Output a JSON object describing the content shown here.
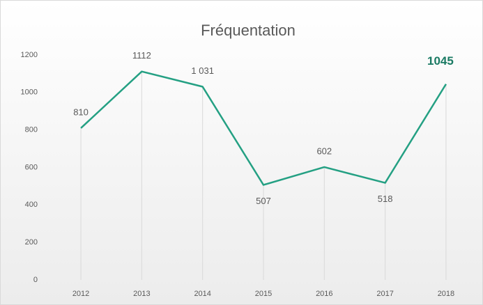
{
  "chart_data": {
    "type": "line",
    "title": "Fréquentation",
    "categories": [
      "2012",
      "2013",
      "2014",
      "2015",
      "2016",
      "2017",
      "2018"
    ],
    "series": [
      {
        "name": "Fréquentation",
        "color": "#24a083",
        "values": [
          810,
          1112,
          1031,
          507,
          602,
          518,
          1045
        ],
        "value_labels": [
          "810",
          "1112",
          "1 031",
          "507",
          "602",
          "518",
          "1045"
        ]
      }
    ],
    "ylim": [
      0,
      1200
    ],
    "yticks": [
      0,
      200,
      400,
      600,
      800,
      1000,
      1200
    ],
    "grid": false
  }
}
